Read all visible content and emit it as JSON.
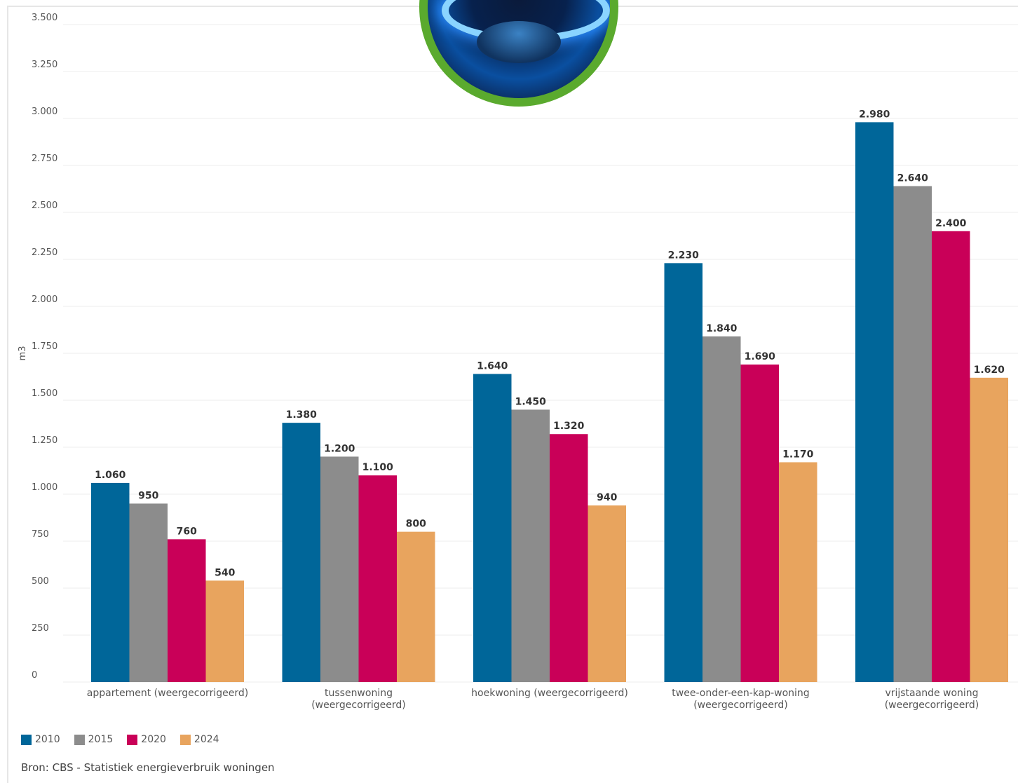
{
  "chart_data": {
    "type": "bar",
    "title": "",
    "ylabel": "m3",
    "xlabel": "",
    "ylim": [
      0,
      3500
    ],
    "yticks": [
      0,
      250,
      500,
      750,
      1000,
      1250,
      1500,
      1750,
      2000,
      2250,
      2500,
      2750,
      3000,
      3250,
      3500
    ],
    "ytick_labels": [
      "0",
      "250",
      "500",
      "750",
      "1.000",
      "1.250",
      "1.500",
      "1.750",
      "2.000",
      "2.250",
      "2.500",
      "2.750",
      "3.000",
      "3.250",
      "3.500"
    ],
    "grid": true,
    "legend_position": "bottom-left",
    "categories": [
      [
        "appartement (weergecorrigeerd)"
      ],
      [
        "tussenwoning",
        "(weergecorrigeerd)"
      ],
      [
        "hoekwoning (weergecorrigeerd)"
      ],
      [
        "twee-onder-een-kap-woning",
        "(weergecorrigeerd)"
      ],
      [
        "vrijstaande woning",
        "(weergecorrigeerd)"
      ]
    ],
    "series": [
      {
        "name": "2010",
        "color": "#006699",
        "values": [
          1060,
          1380,
          1640,
          2230,
          2980
        ],
        "labels": [
          "1.060",
          "1.380",
          "1.640",
          "2.230",
          "2.980"
        ]
      },
      {
        "name": "2015",
        "color": "#8c8c8c",
        "values": [
          950,
          1200,
          1450,
          1840,
          2640
        ],
        "labels": [
          "950",
          "1.200",
          "1.450",
          "1.840",
          "2.640"
        ]
      },
      {
        "name": "2020",
        "color": "#c90058",
        "values": [
          760,
          1100,
          1320,
          1690,
          2400
        ],
        "labels": [
          "760",
          "1.100",
          "1.320",
          "1.690",
          "2.400"
        ]
      },
      {
        "name": "2024",
        "color": "#e8a45e",
        "values": [
          540,
          800,
          940,
          1170,
          1620
        ],
        "labels": [
          "540",
          "800",
          "940",
          "1.170",
          "1.620"
        ]
      }
    ]
  },
  "source": "Bron: CBS - Statistiek energieverbruik woningen",
  "image": {
    "icon": "gas-burner-flame-icon"
  }
}
